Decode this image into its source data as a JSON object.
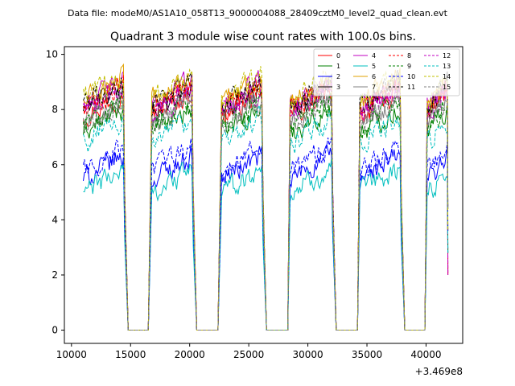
{
  "chart_data": {
    "type": "line",
    "suptitle": "Data file: modeM0/AS1A10_058T13_9000004088_28409cztM0_level2_quad_clean.evt",
    "title": "Quadrant 3 module wise count rates with 100.0s bins.",
    "xlabel": "",
    "ylabel": "",
    "offset_label": "+3.469e8",
    "xlim": [
      9400,
      43100
    ],
    "ylim": [
      -0.48,
      10.28
    ],
    "xticks": [
      10000,
      15000,
      20000,
      25000,
      30000,
      35000,
      40000
    ],
    "xtick_labels": [
      "10000",
      "15000",
      "20000",
      "25000",
      "30000",
      "35000",
      "40000"
    ],
    "yticks": [
      0,
      2,
      4,
      6,
      8,
      10
    ],
    "ytick_labels": [
      "0",
      "2",
      "4",
      "6",
      "8",
      "10"
    ],
    "legend_position": "top-right",
    "segments": [
      [
        11000,
        14500
      ],
      [
        16800,
        20300
      ],
      [
        22700,
        26200
      ],
      [
        28500,
        32100
      ],
      [
        34400,
        37900
      ],
      [
        40100,
        41800
      ]
    ],
    "gaps": [
      [
        14800,
        16500
      ],
      [
        20600,
        22400
      ],
      [
        26500,
        28300
      ],
      [
        32400,
        34200
      ],
      [
        38200,
        39900
      ]
    ],
    "series": [
      {
        "name": "0",
        "color": "#ff0000",
        "dash": "",
        "base": 7.8
      },
      {
        "name": "1",
        "color": "#008000",
        "dash": "",
        "base": 7.2
      },
      {
        "name": "2",
        "color": "#0000ff",
        "dash": "",
        "base": 5.5
      },
      {
        "name": "3",
        "color": "#000000",
        "dash": "",
        "base": 8.0
      },
      {
        "name": "4",
        "color": "#c000c0",
        "dash": "",
        "base": 8.2
      },
      {
        "name": "5",
        "color": "#00bfbf",
        "dash": "",
        "base": 5.0
      },
      {
        "name": "6",
        "color": "#e0a000",
        "dash": "",
        "base": 8.3
      },
      {
        "name": "7",
        "color": "#808080",
        "dash": "",
        "base": 7.6
      },
      {
        "name": "8",
        "color": "#ff0000",
        "dash": "4,2",
        "base": 8.0
      },
      {
        "name": "9",
        "color": "#008000",
        "dash": "4,2",
        "base": 7.4
      },
      {
        "name": "10",
        "color": "#0000ff",
        "dash": "4,2",
        "base": 5.8
      },
      {
        "name": "11",
        "color": "#000000",
        "dash": "4,2",
        "base": 8.1
      },
      {
        "name": "12",
        "color": "#c000c0",
        "dash": "4,2",
        "base": 7.9
      },
      {
        "name": "13",
        "color": "#00bfbf",
        "dash": "4,2",
        "base": 6.8
      },
      {
        "name": "14",
        "color": "#c0c000",
        "dash": "4,2",
        "base": 8.4
      },
      {
        "name": "15",
        "color": "#808080",
        "dash": "4,2",
        "base": 7.5
      }
    ]
  }
}
